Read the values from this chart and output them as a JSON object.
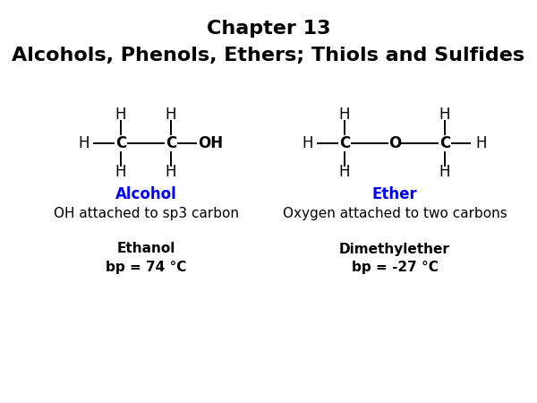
{
  "title_line1": "Chapter 13",
  "title_line2": "Alcohols, Phenols, Ethers; Thiols and Sulfides",
  "title_fontsize": 16,
  "title_fontweight": "bold",
  "bg_color": "#ffffff",
  "alcohol_label": "Alcohol",
  "alcohol_desc": "OH attached to sp3 carbon",
  "alcohol_name": "Ethanol",
  "alcohol_bp": "bp = 74 °C",
  "alcohol_color": "#0000ff",
  "ether_label": "Ether",
  "ether_desc": "Oxygen attached to two carbons",
  "ether_name": "Dimethylether",
  "ether_bp": "bp = -27 °C",
  "ether_color": "#0000ff",
  "struct_fontsize": 12,
  "label_fontsize": 12,
  "desc_fontsize": 11,
  "name_fontsize": 11,
  "bond_color": "#000000"
}
